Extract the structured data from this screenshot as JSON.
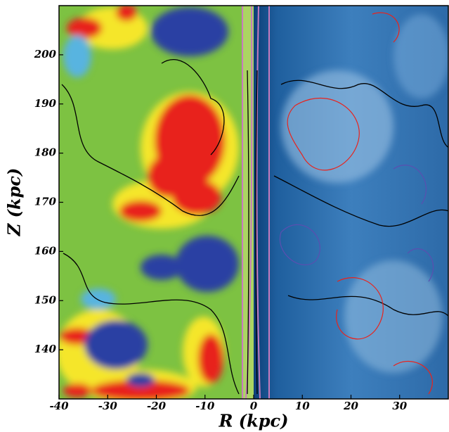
{
  "chart_data": {
    "type": "image",
    "xlabel": "R (kpc)",
    "ylabel": "Z (kpc)",
    "xlim": [
      -40,
      40
    ],
    "ylim": [
      130,
      210
    ],
    "xticks": [
      -40,
      -30,
      -20,
      -10,
      0,
      10,
      20,
      30
    ],
    "yticks": [
      140,
      150,
      160,
      170,
      180,
      190,
      200
    ]
  }
}
